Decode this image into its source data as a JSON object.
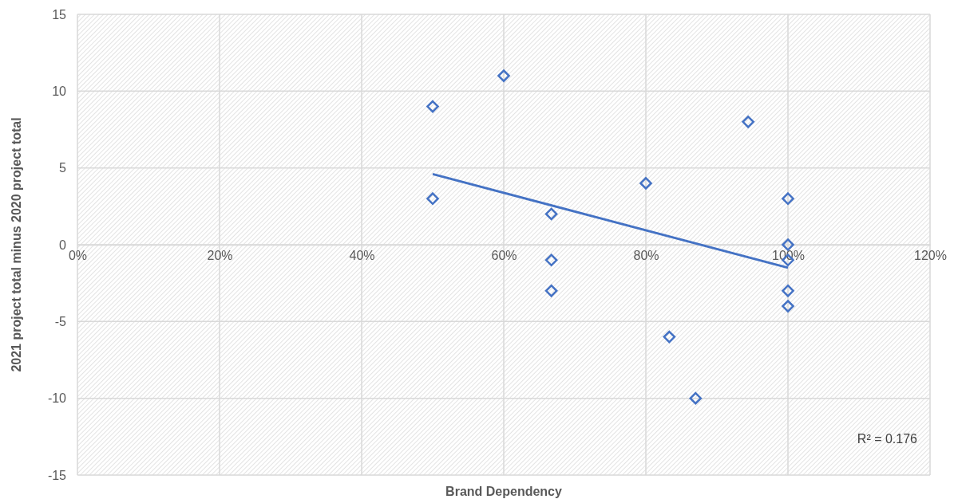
{
  "chart_data": {
    "type": "scatter",
    "xlabel": "Brand Dependency",
    "ylabel": "2021 project total minus 2020 project total",
    "xlim": [
      0,
      120
    ],
    "xticks": [
      {
        "value": 0,
        "label": "0%"
      },
      {
        "value": 20,
        "label": "20%"
      },
      {
        "value": 40,
        "label": "40%"
      },
      {
        "value": 60,
        "label": "60%"
      },
      {
        "value": 80,
        "label": "80%"
      },
      {
        "value": 100,
        "label": "100%"
      },
      {
        "value": 120,
        "label": "120%"
      }
    ],
    "ylim": [
      -15,
      15
    ],
    "yticks": [
      -15,
      -10,
      -5,
      0,
      5,
      10,
      15
    ],
    "grid": true,
    "marker": "diamond",
    "series": [
      {
        "color": "#4472c4",
        "x": [
          50,
          50,
          60,
          66.7,
          66.7,
          66.7,
          80,
          83.3,
          87,
          94.4,
          100,
          100,
          100,
          100,
          100
        ],
        "values": [
          9,
          3,
          11,
          2,
          -1,
          -3,
          4,
          -6,
          -10,
          8,
          3,
          0,
          -1,
          -3,
          -4
        ]
      },
      {
        "type": "line",
        "color": "#4472c4",
        "marker": "none",
        "x": [
          50,
          100
        ],
        "values": [
          4.6,
          -1.5
        ]
      }
    ],
    "annotations": [
      "R² = 0.176"
    ]
  }
}
